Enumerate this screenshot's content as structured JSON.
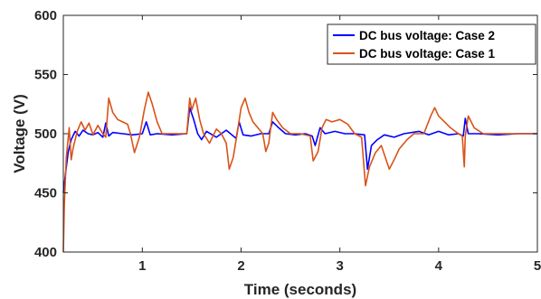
{
  "chart_data": {
    "type": "line",
    "title": "",
    "xlabel": "Time (seconds)",
    "ylabel": "Voltage (V)",
    "xlim": [
      0.2,
      5
    ],
    "ylim": [
      400,
      600
    ],
    "xticks": [
      1,
      2,
      3,
      4,
      5
    ],
    "xtick_labels": [
      "1",
      "2",
      "3",
      "4",
      "5"
    ],
    "yticks": [
      400,
      450,
      500,
      550,
      600
    ],
    "ytick_labels": [
      "400",
      "450",
      "500",
      "550",
      "600"
    ],
    "grid": false,
    "legend_position": "top-right",
    "series": [
      {
        "name": "DC bus voltage: Case 2",
        "color": "#0000ff",
        "points": [
          [
            0.2,
            450
          ],
          [
            0.22,
            465
          ],
          [
            0.25,
            485
          ],
          [
            0.28,
            495
          ],
          [
            0.32,
            502
          ],
          [
            0.36,
            498
          ],
          [
            0.4,
            503
          ],
          [
            0.45,
            500
          ],
          [
            0.5,
            499
          ],
          [
            0.55,
            501
          ],
          [
            0.6,
            497
          ],
          [
            0.63,
            509
          ],
          [
            0.66,
            498
          ],
          [
            0.7,
            501
          ],
          [
            0.8,
            500
          ],
          [
            0.9,
            499
          ],
          [
            1.0,
            500
          ],
          [
            1.04,
            510
          ],
          [
            1.08,
            499
          ],
          [
            1.15,
            500
          ],
          [
            1.3,
            499
          ],
          [
            1.45,
            500
          ],
          [
            1.48,
            522
          ],
          [
            1.52,
            512
          ],
          [
            1.56,
            500
          ],
          [
            1.6,
            495
          ],
          [
            1.65,
            502
          ],
          [
            1.75,
            497
          ],
          [
            1.85,
            503
          ],
          [
            1.95,
            496
          ],
          [
            1.98,
            510
          ],
          [
            2.02,
            499
          ],
          [
            2.1,
            498
          ],
          [
            2.2,
            500
          ],
          [
            2.28,
            500
          ],
          [
            2.32,
            510
          ],
          [
            2.38,
            505
          ],
          [
            2.45,
            500
          ],
          [
            2.55,
            499
          ],
          [
            2.65,
            500
          ],
          [
            2.72,
            498
          ],
          [
            2.75,
            490
          ],
          [
            2.8,
            505
          ],
          [
            2.85,
            500
          ],
          [
            2.95,
            502
          ],
          [
            3.05,
            500
          ],
          [
            3.15,
            500
          ],
          [
            3.25,
            499
          ],
          [
            3.28,
            470
          ],
          [
            3.32,
            490
          ],
          [
            3.38,
            495
          ],
          [
            3.45,
            499
          ],
          [
            3.55,
            497
          ],
          [
            3.65,
            500
          ],
          [
            3.8,
            502
          ],
          [
            3.9,
            499
          ],
          [
            4.0,
            502
          ],
          [
            4.1,
            499
          ],
          [
            4.2,
            500
          ],
          [
            4.25,
            498
          ],
          [
            4.27,
            513
          ],
          [
            4.3,
            500
          ],
          [
            4.4,
            500
          ],
          [
            4.6,
            499
          ],
          [
            4.8,
            500
          ],
          [
            5.0,
            500
          ]
        ]
      },
      {
        "name": "DC bus voltage: Case 1",
        "color": "#d95319",
        "points": [
          [
            0.2,
            400
          ],
          [
            0.21,
            440
          ],
          [
            0.23,
            480
          ],
          [
            0.26,
            505
          ],
          [
            0.28,
            478
          ],
          [
            0.3,
            488
          ],
          [
            0.34,
            502
          ],
          [
            0.38,
            510
          ],
          [
            0.42,
            503
          ],
          [
            0.46,
            509
          ],
          [
            0.5,
            499
          ],
          [
            0.55,
            507
          ],
          [
            0.6,
            500
          ],
          [
            0.63,
            497
          ],
          [
            0.66,
            530
          ],
          [
            0.7,
            518
          ],
          [
            0.75,
            512
          ],
          [
            0.8,
            510
          ],
          [
            0.85,
            508
          ],
          [
            0.88,
            500
          ],
          [
            0.92,
            484
          ],
          [
            0.97,
            497
          ],
          [
            1.02,
            520
          ],
          [
            1.06,
            535
          ],
          [
            1.1,
            525
          ],
          [
            1.15,
            510
          ],
          [
            1.2,
            500
          ],
          [
            1.3,
            500
          ],
          [
            1.4,
            500
          ],
          [
            1.45,
            500
          ],
          [
            1.48,
            530
          ],
          [
            1.5,
            520
          ],
          [
            1.54,
            530
          ],
          [
            1.58,
            512
          ],
          [
            1.62,
            500
          ],
          [
            1.68,
            492
          ],
          [
            1.75,
            504
          ],
          [
            1.8,
            500
          ],
          [
            1.85,
            492
          ],
          [
            1.88,
            470
          ],
          [
            1.92,
            480
          ],
          [
            1.96,
            500
          ],
          [
            2.0,
            522
          ],
          [
            2.04,
            530
          ],
          [
            2.08,
            518
          ],
          [
            2.12,
            510
          ],
          [
            2.18,
            504
          ],
          [
            2.22,
            500
          ],
          [
            2.25,
            485
          ],
          [
            2.28,
            492
          ],
          [
            2.32,
            518
          ],
          [
            2.36,
            512
          ],
          [
            2.42,
            505
          ],
          [
            2.5,
            500
          ],
          [
            2.6,
            500
          ],
          [
            2.7,
            498
          ],
          [
            2.73,
            477
          ],
          [
            2.78,
            485
          ],
          [
            2.82,
            505
          ],
          [
            2.86,
            512
          ],
          [
            2.92,
            510
          ],
          [
            3.0,
            512
          ],
          [
            3.08,
            508
          ],
          [
            3.15,
            500
          ],
          [
            3.22,
            497
          ],
          [
            3.26,
            456
          ],
          [
            3.3,
            472
          ],
          [
            3.36,
            484
          ],
          [
            3.42,
            490
          ],
          [
            3.46,
            480
          ],
          [
            3.5,
            470
          ],
          [
            3.55,
            478
          ],
          [
            3.6,
            487
          ],
          [
            3.68,
            495
          ],
          [
            3.75,
            500
          ],
          [
            3.85,
            500
          ],
          [
            3.92,
            515
          ],
          [
            3.96,
            522
          ],
          [
            4.0,
            515
          ],
          [
            4.06,
            510
          ],
          [
            4.12,
            505
          ],
          [
            4.2,
            500
          ],
          [
            4.24,
            498
          ],
          [
            4.26,
            472
          ],
          [
            4.27,
            498
          ],
          [
            4.3,
            515
          ],
          [
            4.36,
            505
          ],
          [
            4.45,
            500
          ],
          [
            4.6,
            500
          ],
          [
            4.8,
            500
          ],
          [
            5.0,
            500
          ]
        ]
      }
    ]
  }
}
